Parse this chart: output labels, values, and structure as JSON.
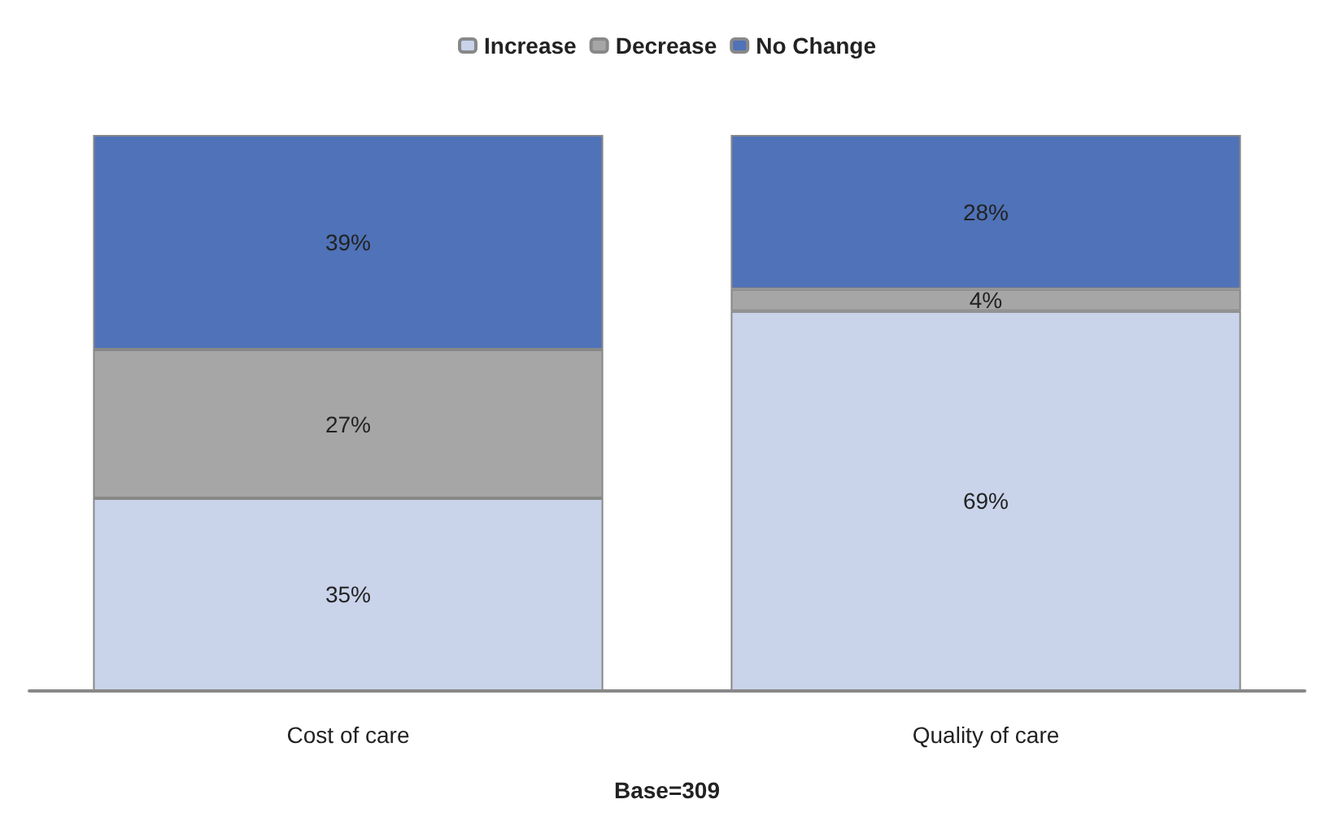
{
  "chart_data": {
    "type": "bar",
    "stacked": true,
    "categories": [
      "Cost of care",
      "Quality of care"
    ],
    "series": [
      {
        "name": "Increase",
        "color": "#c9d3ea",
        "values": [
          35,
          69
        ],
        "value_labels": [
          "35%",
          "69%"
        ]
      },
      {
        "name": "Decrease",
        "color": "#a6a6a6",
        "values": [
          27,
          4
        ],
        "value_labels": [
          "27%",
          "4%"
        ]
      },
      {
        "name": "No Change",
        "color": "#4f72b8",
        "values": [
          39,
          28
        ],
        "value_labels": [
          "39%",
          "28%"
        ]
      }
    ],
    "legend": "top",
    "annotations": [
      "Base=309"
    ]
  }
}
